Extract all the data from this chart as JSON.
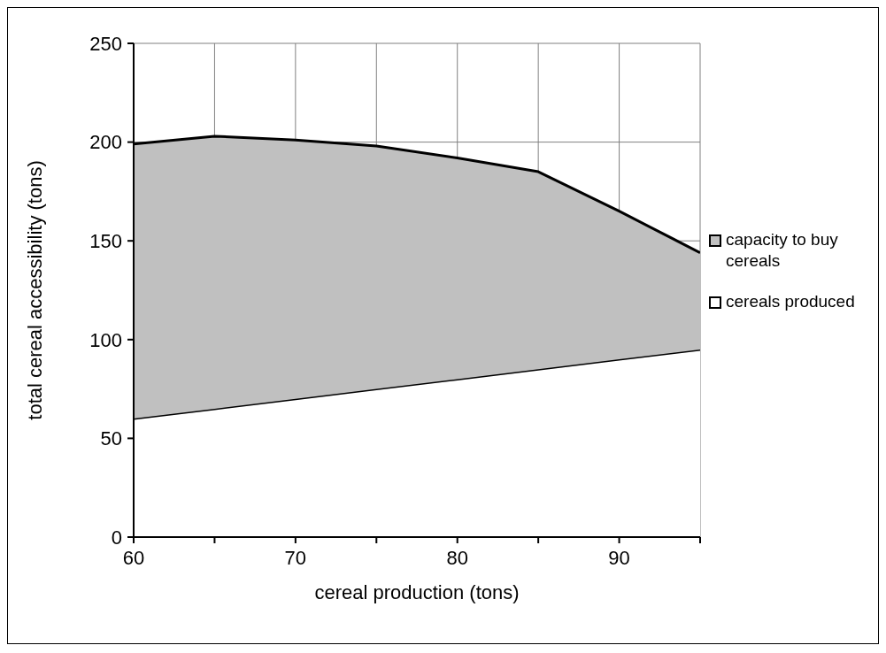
{
  "chart_data": {
    "type": "area",
    "stacked": true,
    "xlabel": "cereal production (tons)",
    "ylabel": "total cereal accessibility (tons)",
    "x": [
      60,
      65,
      70,
      75,
      80,
      85,
      90,
      95
    ],
    "series": [
      {
        "name": "cereals produced",
        "color": "#ffffff",
        "values": [
          60,
          65,
          70,
          75,
          80,
          85,
          90,
          95
        ]
      },
      {
        "name": "capacity to buy cereals",
        "color": "#c0c0c0",
        "values": [
          139,
          138,
          131,
          123,
          112,
          100,
          75,
          49
        ]
      }
    ],
    "xlim": [
      60,
      95
    ],
    "xticks": [
      60,
      {
        "value": 65,
        "label": null
      },
      70,
      {
        "value": 75,
        "label": null
      },
      80,
      {
        "value": 85,
        "label": null
      },
      90,
      {
        "value": 95,
        "label": null
      }
    ],
    "ylim": [
      0,
      250
    ],
    "yticks": [
      0,
      50,
      100,
      150,
      200,
      250
    ],
    "grid": true,
    "legend": "right"
  }
}
